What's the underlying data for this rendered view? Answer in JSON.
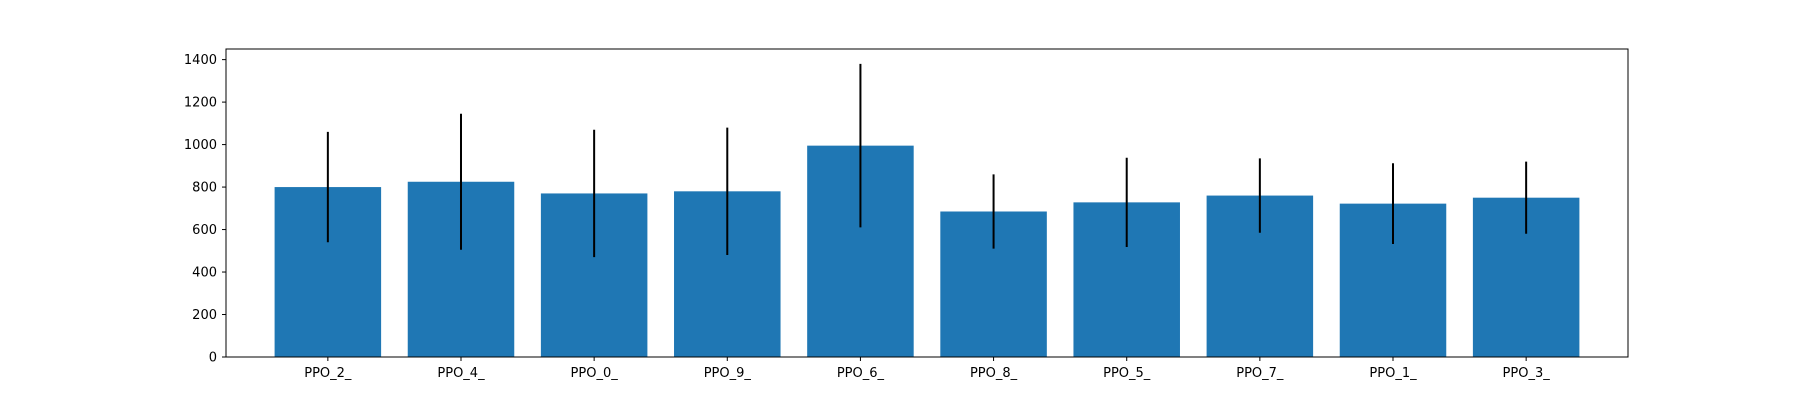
{
  "chart_data": {
    "type": "bar",
    "title": "",
    "xlabel": "",
    "ylabel": "",
    "categories": [
      "PPO_2_",
      "PPO_4_",
      "PPO_0_",
      "PPO_9_",
      "PPO_6_",
      "PPO_8_",
      "PPO_5_",
      "PPO_7_",
      "PPO_1_",
      "PPO_3_"
    ],
    "values": [
      800,
      825,
      770,
      780,
      995,
      685,
      728,
      760,
      722,
      750
    ],
    "error": [
      260,
      320,
      300,
      300,
      385,
      175,
      210,
      175,
      190,
      170
    ],
    "ylim": [
      0,
      1450
    ],
    "yticks": [
      0,
      200,
      400,
      600,
      800,
      1000,
      1200,
      1400
    ],
    "grid": false,
    "colors": {
      "bar": "#1f77b4",
      "error_bar": "#000000"
    }
  }
}
